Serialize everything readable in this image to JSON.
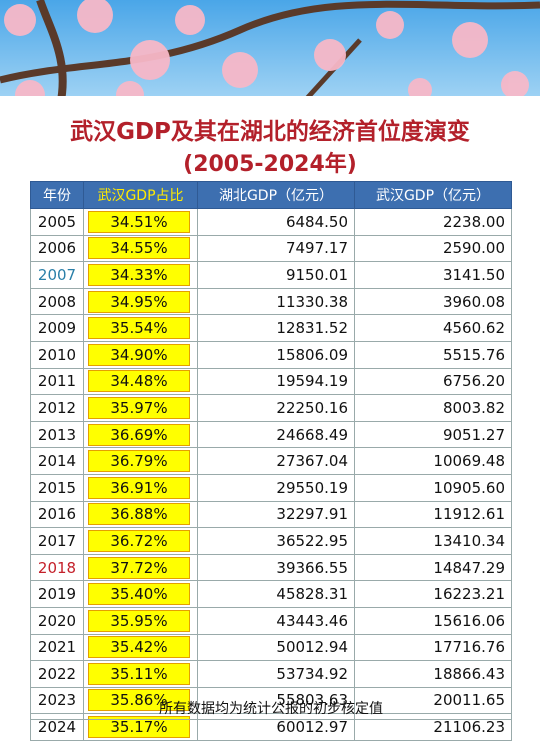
{
  "title": {
    "line1": "武汉GDP及其在湖北的经济首位度演变",
    "line2": "(2005-2024年)"
  },
  "table": {
    "header": [
      "年份",
      "武汉GDP占比",
      "湖北GDP（亿元）",
      "武汉GDP（亿元）"
    ],
    "rows": [
      [
        "2005",
        "34.51%",
        "6484.50",
        "2238.00"
      ],
      [
        "2006",
        "34.55%",
        "7497.17",
        "2590.00"
      ],
      [
        "2007",
        "34.33%",
        "9150.01",
        "3141.50"
      ],
      [
        "2008",
        "34.95%",
        "11330.38",
        "3960.08"
      ],
      [
        "2009",
        "35.54%",
        "12831.52",
        "4560.62"
      ],
      [
        "2010",
        "34.90%",
        "15806.09",
        "5515.76"
      ],
      [
        "2011",
        "34.48%",
        "19594.19",
        "6756.20"
      ],
      [
        "2012",
        "35.97%",
        "22250.16",
        "8003.82"
      ],
      [
        "2013",
        "36.69%",
        "24668.49",
        "9051.27"
      ],
      [
        "2014",
        "36.79%",
        "27367.04",
        "10069.48"
      ],
      [
        "2015",
        "36.91%",
        "29550.19",
        "10905.60"
      ],
      [
        "2016",
        "36.88%",
        "32297.91",
        "11912.61"
      ],
      [
        "2017",
        "36.72%",
        "36522.95",
        "13410.34"
      ],
      [
        "2018",
        "37.72%",
        "39366.55",
        "14847.29"
      ],
      [
        "2019",
        "35.40%",
        "45828.31",
        "16223.21"
      ],
      [
        "2020",
        "35.95%",
        "43443.46",
        "15616.06"
      ],
      [
        "2021",
        "35.42%",
        "50012.94",
        "17716.76"
      ],
      [
        "2022",
        "35.11%",
        "53734.92",
        "18866.43"
      ],
      [
        "2023",
        "35.86%",
        "55803.63",
        "20011.65"
      ],
      [
        "2024",
        "35.17%",
        "60012.97",
        "21106.23"
      ]
    ]
  },
  "footer": "所有数据均为统计公报的初步核定值"
}
